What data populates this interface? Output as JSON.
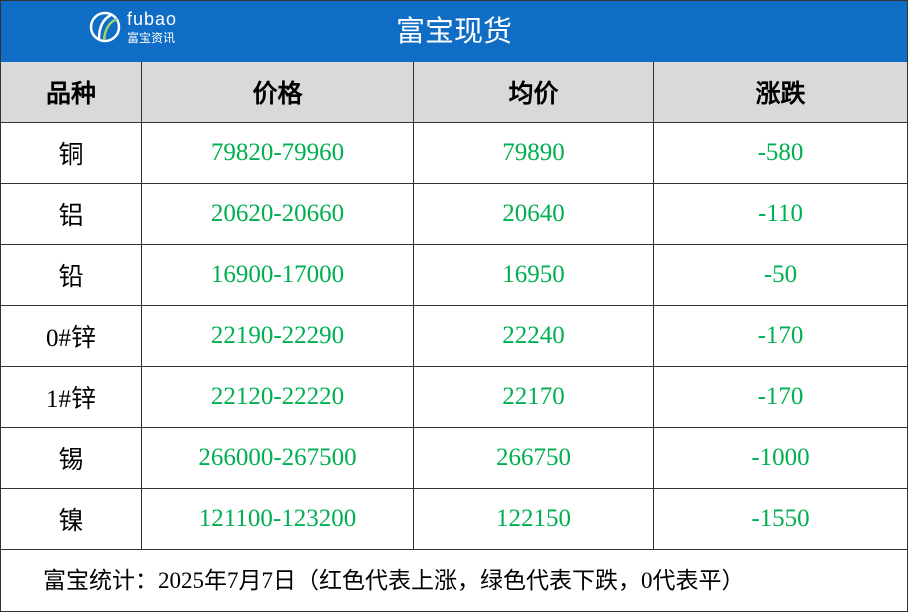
{
  "header": {
    "logo_brand": "fubao",
    "logo_sub": "富宝资讯",
    "title": "富宝现货"
  },
  "table": {
    "columns": [
      "品种",
      "价格",
      "均价",
      "涨跌"
    ],
    "rows": [
      [
        "铜",
        "79820-79960",
        "79890",
        "-580"
      ],
      [
        "铝",
        "20620-20660",
        "20640",
        "-110"
      ],
      [
        "铅",
        "16900-17000",
        "16950",
        "-50"
      ],
      [
        "0#锌",
        "22190-22290",
        "22240",
        "-170"
      ],
      [
        "1#锌",
        "22120-22220",
        "22170",
        "-170"
      ],
      [
        "锡",
        "266000-267500",
        "266750",
        "-1000"
      ],
      [
        "镍",
        "121100-123200",
        "122150",
        "-1550"
      ]
    ]
  },
  "footer": {
    "note": "富宝统计：2025年7月7日（红色代表上涨，绿色代表下跌，0代表平）"
  }
}
